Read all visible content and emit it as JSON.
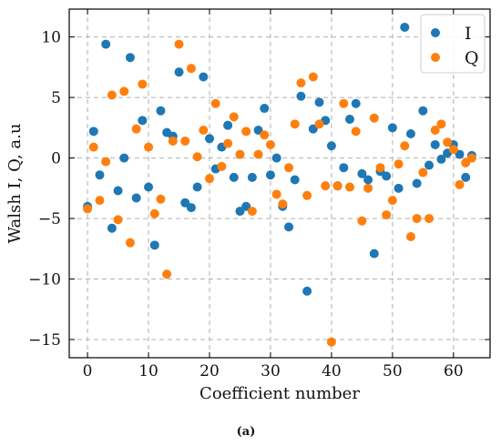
{
  "chart_data": {
    "type": "scatter",
    "xlabel": "Coefficient number",
    "ylabel": "Walsh I, Q, a.u",
    "xlim": [
      -3,
      66
    ],
    "ylim": [
      -16.5,
      12.3
    ],
    "xticks": [
      0,
      10,
      20,
      30,
      40,
      50,
      60
    ],
    "yticks": [
      -15,
      -10,
      -5,
      0,
      5,
      10
    ],
    "xtick_labels": [
      "0",
      "10",
      "20",
      "30",
      "40",
      "50",
      "60"
    ],
    "ytick_labels": [
      "−15",
      "−10",
      "−5",
      "0",
      "5",
      "10"
    ],
    "grid": true,
    "legend_position": "top-right",
    "caption": "(a)",
    "x": [
      0,
      1,
      2,
      3,
      4,
      5,
      6,
      7,
      8,
      9,
      10,
      11,
      12,
      13,
      14,
      15,
      16,
      17,
      18,
      19,
      20,
      21,
      22,
      23,
      24,
      25,
      26,
      27,
      28,
      29,
      30,
      31,
      32,
      33,
      34,
      35,
      36,
      37,
      38,
      39,
      40,
      41,
      42,
      43,
      44,
      45,
      46,
      47,
      48,
      49,
      50,
      51,
      52,
      53,
      54,
      55,
      56,
      57,
      58,
      59,
      60,
      61,
      62,
      63
    ],
    "series": [
      {
        "name": "I",
        "color": "#1f77b4",
        "values": [
          -4.0,
          2.2,
          -1.4,
          9.4,
          -5.8,
          -2.7,
          0.0,
          8.3,
          -3.3,
          3.1,
          -2.4,
          -7.2,
          3.9,
          2.1,
          1.8,
          7.1,
          -3.7,
          -4.1,
          -2.4,
          6.7,
          1.6,
          -0.9,
          0.9,
          2.7,
          -1.6,
          -4.4,
          -4.0,
          -1.6,
          2.3,
          4.1,
          -1.4,
          0.0,
          -4.0,
          -5.7,
          -1.8,
          5.1,
          -11.0,
          2.4,
          4.6,
          3.1,
          1.0,
          -2.3,
          -0.8,
          3.2,
          4.5,
          -1.3,
          -1.8,
          -7.9,
          -1.1,
          -1.5,
          2.5,
          -2.5,
          10.8,
          2.0,
          -2.1,
          3.9,
          -0.6,
          1.1,
          -0.1,
          0.4,
          1.1,
          0.3,
          -1.6,
          0.2
        ]
      },
      {
        "name": "Q",
        "color": "#ff7f0e",
        "values": [
          -4.2,
          0.9,
          -3.5,
          -0.3,
          5.2,
          -5.1,
          5.5,
          -7.0,
          2.4,
          6.1,
          0.9,
          -4.6,
          -3.4,
          -9.6,
          1.4,
          9.4,
          1.4,
          7.4,
          0.1,
          2.3,
          -1.7,
          4.5,
          -0.7,
          1.2,
          3.4,
          0.3,
          2.2,
          -4.4,
          0.3,
          1.9,
          1.1,
          -3.0,
          -3.8,
          -0.8,
          2.8,
          6.2,
          -3.1,
          6.7,
          2.8,
          -2.3,
          -15.2,
          -2.3,
          4.5,
          -2.4,
          2.2,
          -5.2,
          -2.5,
          3.3,
          -0.8,
          -4.7,
          -3.5,
          -0.5,
          1.0,
          -6.5,
          -5.0,
          -1.2,
          -5.0,
          2.3,
          2.8,
          1.3,
          0.7,
          -2.2,
          -0.4,
          0.0
        ]
      }
    ]
  }
}
